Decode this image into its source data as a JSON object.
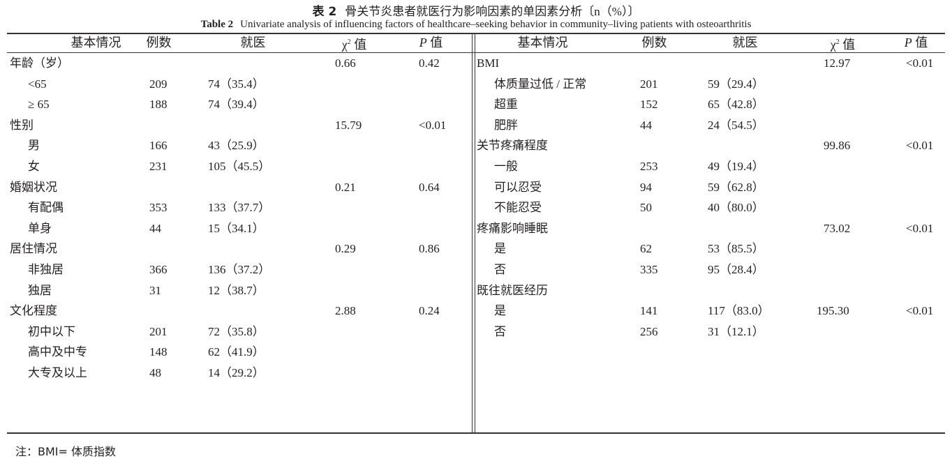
{
  "title_cn": {
    "label": "表 2",
    "text": "骨关节炎患者就医行为影响因素的单因素分析〔n（%）〕"
  },
  "title_en": {
    "label": "Table 2",
    "text": "Univariate analysis of influencing factors of healthcare–seeking behavior in community–living patients with osteoarthritis"
  },
  "headers": {
    "factor": "基本情况",
    "n": "例数",
    "visit": "就医",
    "chi": "χ",
    "chi_sup": "2",
    "chi_suffix": " 值",
    "p": "P",
    "p_suffix": " 值"
  },
  "left_rows": [
    {
      "label": "年龄（岁）",
      "sub": false,
      "n": "",
      "visit": "",
      "chi": "0.66",
      "p": "0.42"
    },
    {
      "label": "<65",
      "sub": true,
      "n": "209",
      "visit": "74（35.4）",
      "chi": "",
      "p": ""
    },
    {
      "label": "≥ 65",
      "sub": true,
      "n": "188",
      "visit": "74（39.4）",
      "chi": "",
      "p": ""
    },
    {
      "label": "性别",
      "sub": false,
      "n": "",
      "visit": "",
      "chi": "15.79",
      "p": "<0.01"
    },
    {
      "label": "男",
      "sub": true,
      "n": "166",
      "visit": "43（25.9）",
      "chi": "",
      "p": ""
    },
    {
      "label": "女",
      "sub": true,
      "n": "231",
      "visit": "105（45.5）",
      "chi": "",
      "p": ""
    },
    {
      "label": "婚姻状况",
      "sub": false,
      "n": "",
      "visit": "",
      "chi": "0.21",
      "p": "0.64"
    },
    {
      "label": "有配偶",
      "sub": true,
      "n": "353",
      "visit": "133（37.7）",
      "chi": "",
      "p": ""
    },
    {
      "label": "单身",
      "sub": true,
      "n": "44",
      "visit": "15（34.1）",
      "chi": "",
      "p": ""
    },
    {
      "label": "居住情况",
      "sub": false,
      "n": "",
      "visit": "",
      "chi": "0.29",
      "p": "0.86"
    },
    {
      "label": "非独居",
      "sub": true,
      "n": "366",
      "visit": "136（37.2）",
      "chi": "",
      "p": ""
    },
    {
      "label": "独居",
      "sub": true,
      "n": "31",
      "visit": "12（38.7）",
      "chi": "",
      "p": ""
    },
    {
      "label": "文化程度",
      "sub": false,
      "n": "",
      "visit": "",
      "chi": "2.88",
      "p": "0.24"
    },
    {
      "label": "初中以下",
      "sub": true,
      "n": "201",
      "visit": "72（35.8）",
      "chi": "",
      "p": ""
    },
    {
      "label": "高中及中专",
      "sub": true,
      "n": "148",
      "visit": "62（41.9）",
      "chi": "",
      "p": ""
    },
    {
      "label": "大专及以上",
      "sub": true,
      "n": "48",
      "visit": "14（29.2）",
      "chi": "",
      "p": ""
    }
  ],
  "right_rows": [
    {
      "label": "BMI",
      "sub": false,
      "n": "",
      "visit": "",
      "chi": "12.97",
      "p": "<0.01"
    },
    {
      "label": "体质量过低 / 正常",
      "sub": true,
      "n": "201",
      "visit": "59（29.4）",
      "chi": "",
      "p": ""
    },
    {
      "label": "超重",
      "sub": true,
      "n": "152",
      "visit": "65（42.8）",
      "chi": "",
      "p": ""
    },
    {
      "label": "肥胖",
      "sub": true,
      "n": "44",
      "visit": "24（54.5）",
      "chi": "",
      "p": ""
    },
    {
      "label": "关节疼痛程度",
      "sub": false,
      "n": "",
      "visit": "",
      "chi": "99.86",
      "p": "<0.01"
    },
    {
      "label": "一般",
      "sub": true,
      "n": "253",
      "visit": "49（19.4）",
      "chi": "",
      "p": ""
    },
    {
      "label": "可以忍受",
      "sub": true,
      "n": "94",
      "visit": "59（62.8）",
      "chi": "",
      "p": ""
    },
    {
      "label": "不能忍受",
      "sub": true,
      "n": "50",
      "visit": "40（80.0）",
      "chi": "",
      "p": ""
    },
    {
      "label": "疼痛影响睡眠",
      "sub": false,
      "n": "",
      "visit": "",
      "chi": "73.02",
      "p": "<0.01"
    },
    {
      "label": "是",
      "sub": true,
      "n": "62",
      "visit": "53（85.5）",
      "chi": "",
      "p": ""
    },
    {
      "label": "否",
      "sub": true,
      "n": "335",
      "visit": "95（28.4）",
      "chi": "",
      "p": ""
    },
    {
      "label": "既往就医经历",
      "sub": false,
      "n": "",
      "visit": "",
      "chi": "",
      "p": ""
    },
    {
      "label": "是",
      "sub": true,
      "n": "141",
      "visit": "117（83.0）",
      "chi": "195.30",
      "p": "<0.01"
    },
    {
      "label": "否",
      "sub": true,
      "n": "256",
      "visit": "31（12.1）",
      "chi": "",
      "p": ""
    }
  ],
  "note": "注：BMI= 体质指数"
}
